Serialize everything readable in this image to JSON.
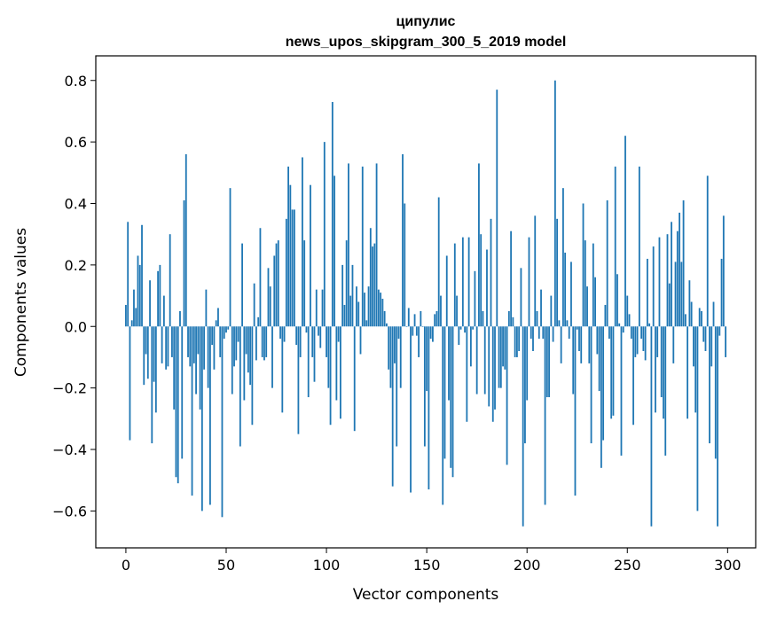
{
  "chart_data": {
    "type": "bar",
    "title_line1": "ципулис",
    "title_line2": "news_upos_skipgram_300_5_2019 model",
    "xlabel": "Vector components",
    "ylabel": "Components values",
    "xlim": [
      -15,
      314
    ],
    "ylim": [
      -0.72,
      0.88
    ],
    "x_ticks": [
      0,
      50,
      100,
      150,
      200,
      250,
      300
    ],
    "y_ticks": [
      0.8,
      0.6,
      0.4,
      0.2,
      0.0,
      -0.2,
      -0.4,
      -0.6
    ],
    "y_tick_labels": [
      "0.8",
      "0.6",
      "0.4",
      "0.2",
      "0.0",
      "−0.2",
      "−0.4",
      "−0.6"
    ],
    "bar_color": "#1f77b4",
    "values": [
      0.07,
      0.34,
      -0.37,
      0.02,
      0.12,
      0.06,
      0.23,
      0.2,
      0.33,
      -0.19,
      -0.09,
      -0.17,
      0.15,
      -0.38,
      -0.18,
      -0.28,
      0.18,
      0.2,
      -0.12,
      0.1,
      -0.14,
      -0.13,
      0.3,
      -0.1,
      -0.27,
      -0.49,
      -0.51,
      0.05,
      -0.43,
      0.41,
      0.56,
      -0.1,
      -0.13,
      -0.55,
      -0.12,
      -0.22,
      -0.09,
      -0.27,
      -0.6,
      -0.14,
      0.12,
      -0.2,
      -0.58,
      -0.06,
      -0.14,
      0.02,
      0.06,
      -0.1,
      -0.62,
      -0.04,
      -0.02,
      -0.01,
      0.45,
      -0.22,
      -0.13,
      -0.11,
      -0.05,
      -0.39,
      0.27,
      -0.24,
      -0.09,
      -0.15,
      -0.19,
      -0.32,
      0.14,
      -0.11,
      0.03,
      0.32,
      -0.1,
      -0.11,
      -0.1,
      0.19,
      0.13,
      -0.2,
      0.23,
      0.27,
      0.28,
      -0.04,
      -0.28,
      -0.05,
      0.35,
      0.52,
      0.46,
      0.38,
      0.38,
      -0.06,
      -0.35,
      -0.1,
      0.55,
      0.28,
      -0.02,
      -0.23,
      0.46,
      -0.1,
      -0.18,
      0.12,
      -0.03,
      -0.07,
      0.12,
      0.6,
      -0.1,
      -0.2,
      -0.32,
      0.73,
      0.49,
      -0.24,
      -0.05,
      -0.3,
      0.2,
      0.07,
      0.28,
      0.53,
      0.1,
      0.2,
      -0.34,
      0.13,
      0.08,
      -0.09,
      0.52,
      0.11,
      0.02,
      0.13,
      0.32,
      0.26,
      0.27,
      0.53,
      0.12,
      0.11,
      0.09,
      0.05,
      0.01,
      -0.14,
      -0.2,
      -0.52,
      -0.12,
      -0.39,
      -0.04,
      -0.2,
      0.56,
      0.4,
      0.0,
      0.06,
      -0.54,
      -0.03,
      0.04,
      -0.03,
      -0.1,
      0.05,
      0.0,
      -0.39,
      -0.21,
      -0.53,
      -0.04,
      -0.05,
      0.04,
      0.05,
      0.42,
      0.1,
      -0.58,
      -0.43,
      0.23,
      -0.24,
      -0.46,
      -0.49,
      0.27,
      0.1,
      -0.06,
      -0.01,
      0.29,
      -0.02,
      -0.31,
      0.29,
      -0.13,
      -0.01,
      0.18,
      -0.22,
      0.53,
      0.3,
      0.05,
      -0.22,
      0.25,
      -0.26,
      0.35,
      -0.31,
      -0.27,
      0.77,
      -0.2,
      -0.2,
      -0.13,
      -0.14,
      -0.45,
      0.05,
      0.31,
      0.03,
      -0.1,
      -0.1,
      -0.08,
      0.19,
      -0.65,
      -0.38,
      -0.24,
      0.29,
      -0.04,
      -0.08,
      0.36,
      0.05,
      -0.04,
      0.12,
      -0.04,
      -0.58,
      -0.23,
      -0.23,
      0.1,
      -0.05,
      0.8,
      0.35,
      0.02,
      -0.12,
      0.45,
      0.24,
      0.02,
      -0.04,
      0.21,
      -0.22,
      -0.55,
      -0.01,
      -0.08,
      -0.12,
      0.4,
      0.28,
      0.13,
      -0.12,
      -0.38,
      0.27,
      0.16,
      -0.09,
      -0.21,
      -0.46,
      -0.37,
      0.07,
      0.41,
      -0.04,
      -0.3,
      -0.29,
      0.52,
      0.17,
      0.01,
      -0.42,
      -0.02,
      0.62,
      0.1,
      0.04,
      -0.04,
      -0.32,
      -0.1,
      -0.09,
      0.52,
      -0.04,
      -0.08,
      -0.11,
      0.22,
      0.01,
      -0.65,
      0.26,
      -0.28,
      -0.1,
      0.29,
      -0.23,
      -0.3,
      -0.42,
      0.3,
      0.14,
      0.34,
      -0.12,
      0.21,
      0.31,
      0.37,
      0.21,
      0.41,
      0.04,
      -0.3,
      0.15,
      0.08,
      -0.13,
      -0.28,
      -0.6,
      0.06,
      0.05,
      -0.05,
      -0.08,
      0.49,
      -0.38,
      -0.13,
      0.08,
      -0.43,
      -0.65,
      -0.03,
      0.22,
      0.36,
      -0.1
    ]
  }
}
